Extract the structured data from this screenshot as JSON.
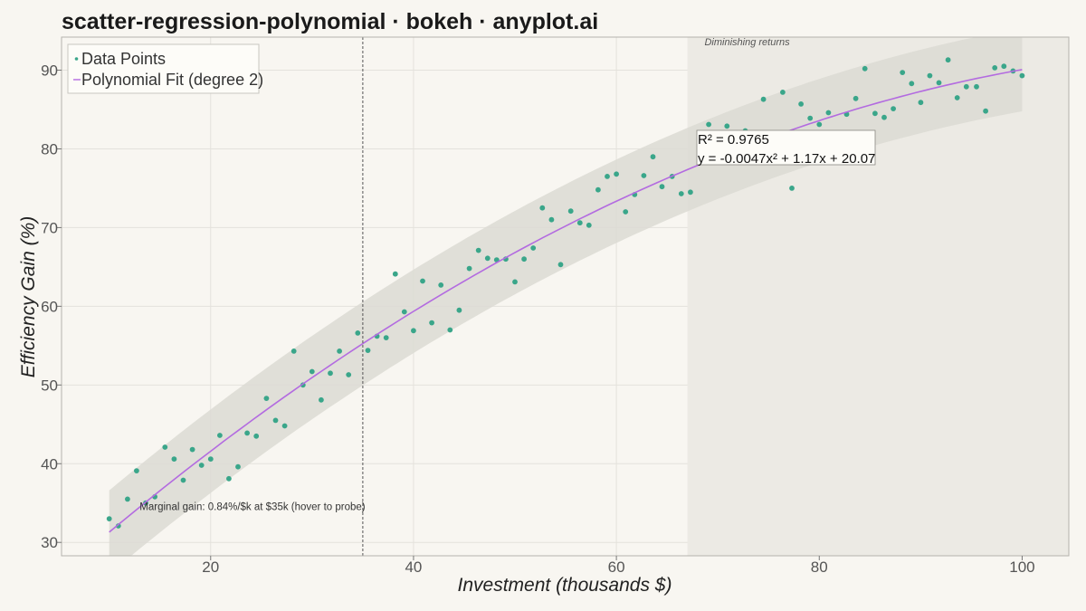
{
  "title": "scatter-regression-polynomial · bokeh · anyplot.ai",
  "colors": {
    "background": "#f8f6f1",
    "plot_bg": "#f8f6f1",
    "points": "#3aa68a",
    "fit_line": "#b36be0",
    "band": "#dcdad4",
    "region": "#eceae4",
    "marker_line": "#555555"
  },
  "chart_data": {
    "type": "scatter",
    "title": "scatter-regression-polynomial · bokeh · anyplot.ai",
    "xlabel": "Investment (thousands $)",
    "ylabel": "Efficiency Gain (%)",
    "xlim": [
      5.3,
      104.6
    ],
    "ylim": [
      28.3,
      94.2
    ],
    "xticks": [
      20,
      40,
      60,
      80,
      100
    ],
    "yticks": [
      30,
      40,
      50,
      60,
      70,
      80,
      90
    ],
    "grid": true,
    "legend": {
      "position": "top-left",
      "entries": [
        "Data Points",
        "Polynomial Fit (degree 2)"
      ]
    },
    "series": [
      {
        "name": "Data Points",
        "kind": "scatter",
        "x": [
          10.0,
          10.9,
          11.8,
          12.7,
          13.6,
          14.5,
          15.5,
          16.4,
          17.3,
          18.2,
          19.1,
          20.0,
          20.9,
          21.8,
          22.7,
          23.6,
          24.5,
          25.5,
          26.4,
          27.3,
          28.2,
          29.1,
          30.0,
          30.9,
          31.8,
          32.7,
          33.6,
          34.5,
          35.5,
          36.4,
          37.3,
          38.2,
          39.1,
          40.0,
          40.9,
          41.8,
          42.7,
          43.6,
          44.5,
          45.5,
          46.4,
          47.3,
          48.2,
          49.1,
          50.0,
          50.9,
          51.8,
          52.7,
          53.6,
          54.5,
          55.5,
          56.4,
          57.3,
          58.2,
          59.1,
          60.0,
          60.9,
          61.8,
          62.7,
          63.6,
          64.5,
          65.5,
          66.4,
          67.3,
          69.1,
          70.9,
          72.7,
          74.5,
          76.4,
          77.3,
          78.2,
          79.1,
          80.0,
          80.9,
          82.7,
          83.6,
          84.5,
          85.5,
          86.4,
          87.3,
          88.2,
          89.1,
          90.0,
          90.9,
          91.8,
          92.7,
          93.6,
          94.5,
          95.5,
          96.4,
          97.3,
          98.2,
          99.1,
          100.0
        ],
        "y": [
          33.0,
          32.1,
          35.5,
          39.1,
          35.0,
          35.8,
          42.1,
          40.6,
          37.9,
          41.8,
          39.8,
          40.6,
          43.6,
          38.1,
          39.6,
          43.9,
          43.5,
          48.3,
          45.5,
          44.8,
          54.3,
          50.0,
          51.7,
          48.1,
          51.5,
          54.3,
          51.3,
          56.6,
          54.4,
          56.2,
          56.0,
          64.1,
          59.3,
          56.9,
          63.2,
          57.9,
          62.7,
          57.0,
          59.5,
          64.8,
          67.1,
          66.1,
          65.9,
          66.0,
          63.1,
          66.0,
          67.4,
          72.5,
          71.0,
          65.3,
          72.1,
          70.6,
          70.3,
          74.8,
          76.5,
          76.8,
          72.0,
          74.2,
          76.6,
          79.0,
          75.2,
          76.5,
          74.3,
          74.5,
          83.1,
          82.9,
          82.3,
          86.3,
          87.2,
          75.0,
          85.7,
          83.9,
          83.1,
          84.6,
          84.4,
          86.4,
          90.2,
          84.5,
          84.0,
          85.1,
          89.7,
          88.3,
          85.9,
          89.3,
          88.4,
          91.3,
          86.5,
          87.9,
          87.9,
          84.8,
          90.3,
          90.5,
          89.9,
          89.3
        ]
      },
      {
        "name": "Polynomial Fit (degree 2)",
        "kind": "line",
        "coefficients": [
          -0.0047,
          1.17,
          20.07
        ],
        "x_range": [
          10,
          100
        ],
        "band_halfwidth": 5.3
      }
    ],
    "annotations": {
      "r_squared": "R² = 0.9765",
      "equation": "y = -0.0047x² + 1.17x + 20.07",
      "vline_x": 35,
      "vline_label": "Marginal gain: 0.84%/$k at $35k (hover to probe)",
      "region_x": [
        67,
        104.6
      ],
      "region_label": "Diminishing returns"
    }
  }
}
